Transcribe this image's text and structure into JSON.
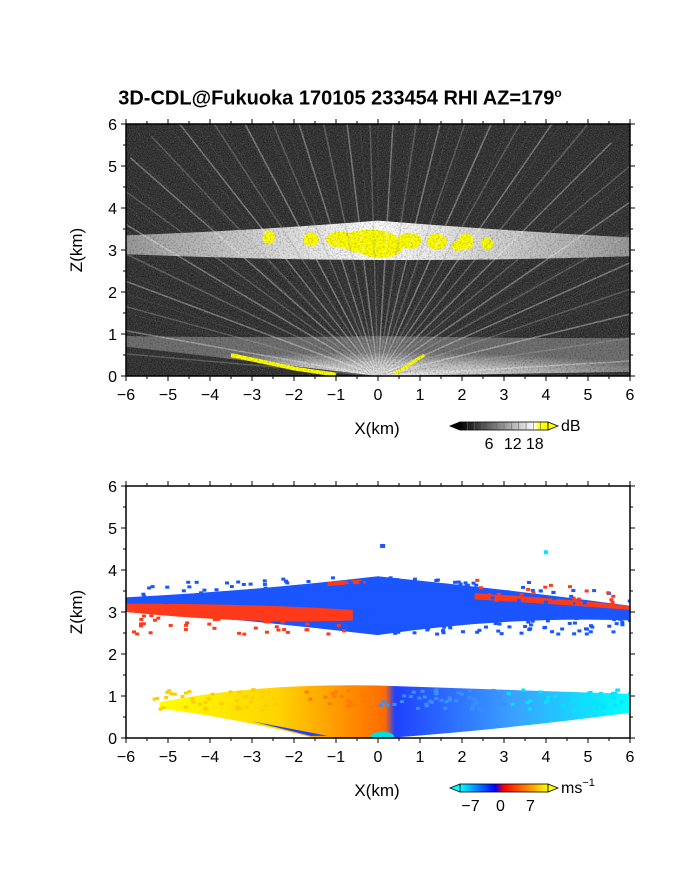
{
  "title": "3D-CDL@Fukuoka 170105 233454 RHI AZ=179",
  "title_degree": "o",
  "chart_data": [
    {
      "type": "heatmap",
      "name_printed": "",
      "xlabel": "X(km)",
      "ylabel": "Z(km)",
      "xlim": [
        -6,
        6
      ],
      "ylim": [
        0,
        6
      ],
      "xticks": [
        "−6",
        "−5",
        "−4",
        "−3",
        "−2",
        "−1",
        "0",
        "1",
        "2",
        "3",
        "4",
        "5",
        "6"
      ],
      "yticks": [
        "0",
        "1",
        "2",
        "3",
        "4",
        "5",
        "6"
      ],
      "colorbar": {
        "unit": "dB",
        "ticks": [
          "6",
          "12",
          "18"
        ],
        "colors": [
          "#000000",
          "#ffffff",
          "#ffff00"
        ]
      },
      "layers": [
        {
          "z_bottom": 2.75,
          "z_top": 3.5,
          "x_range": [
            -6,
            6
          ],
          "peak_x": 0,
          "peak_value": 18
        },
        {
          "z_bottom": 0,
          "z_top": 1.0,
          "x_range": [
            -6,
            6
          ],
          "peak_x": 0,
          "peak_value": 18
        }
      ]
    },
    {
      "type": "heatmap",
      "xlabel": "X(km)",
      "ylabel": "Z(km)",
      "xlim": [
        -6,
        6
      ],
      "ylim": [
        0,
        6
      ],
      "xticks": [
        "−6",
        "−5",
        "−4",
        "−3",
        "−2",
        "−1",
        "0",
        "1",
        "2",
        "3",
        "4",
        "5",
        "6"
      ],
      "yticks": [
        "0",
        "1",
        "2",
        "3",
        "4",
        "5",
        "6"
      ],
      "colorbar": {
        "unit": "ms",
        "unit_exponent": "−1",
        "ticks": [
          "−7",
          "0",
          "7"
        ],
        "colors": [
          "#00ffff",
          "#0000ff",
          "#ff0000",
          "#ffff00"
        ]
      },
      "layers": [
        {
          "z_bottom": 2.6,
          "z_top": 3.5,
          "upper_velocity": -5,
          "lower_velocity": 5
        },
        {
          "z_bottom": 0,
          "z_top": 1.2,
          "velocity_at_x_minus6": 7,
          "velocity_at_x_0": 0,
          "velocity_at_x_6": -7
        }
      ]
    }
  ]
}
